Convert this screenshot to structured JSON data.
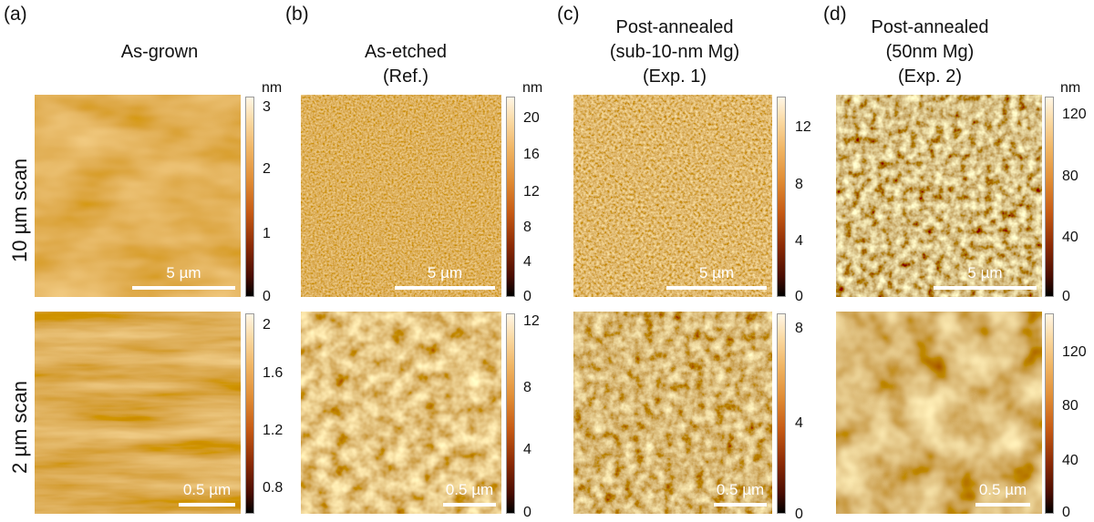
{
  "panels": [
    {
      "letter": "(a)",
      "title_lines": [
        "As-grown"
      ]
    },
    {
      "letter": "(b)",
      "title_lines": [
        "As-etched",
        "(Ref.)"
      ]
    },
    {
      "letter": "(c)",
      "title_lines": [
        "Post-annealed",
        "(sub-10-nm Mg)",
        "(Exp. 1)"
      ]
    },
    {
      "letter": "(d)",
      "title_lines": [
        "Post-annealed",
        "(50nm Mg)",
        "(Exp. 2)"
      ]
    }
  ],
  "row_labels": [
    "10 µm scan",
    "2 µm scan"
  ],
  "units": {
    "nm": "nm"
  },
  "scale_labels": {
    "large": "5 µm",
    "small": "0.5 µm"
  },
  "colorbars": {
    "a_top": [
      "3",
      "2",
      "1",
      "0"
    ],
    "a_bottom": [
      "2",
      "1.6",
      "1.2",
      "0.8"
    ],
    "b_top": [
      "20",
      "16",
      "12",
      "8",
      "4",
      "0"
    ],
    "b_bottom": [
      "12",
      "8",
      "4",
      "0"
    ],
    "c_top": [
      "12",
      "8",
      "4",
      "0"
    ],
    "c_bottom": [
      "8",
      "4",
      "0"
    ],
    "d_top": [
      "120",
      "80",
      "40",
      "0"
    ],
    "d_bottom": [
      "120",
      "80",
      "40",
      "0"
    ]
  },
  "colors": {
    "afm_dark": "#5a1a03",
    "afm_mid": "#c8702a",
    "afm_light": "#f6cf8c"
  }
}
